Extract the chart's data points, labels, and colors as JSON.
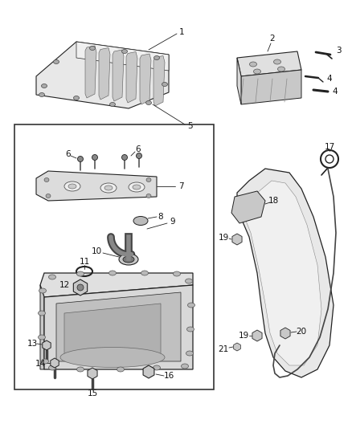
{
  "bg_color": "#ffffff",
  "line_color": "#222222",
  "gray_light": "#e8e8e8",
  "gray_mid": "#c8c8c8",
  "gray_dark": "#999999",
  "label_color": "#111111",
  "figsize": [
    4.38,
    5.33
  ],
  "dpi": 100
}
